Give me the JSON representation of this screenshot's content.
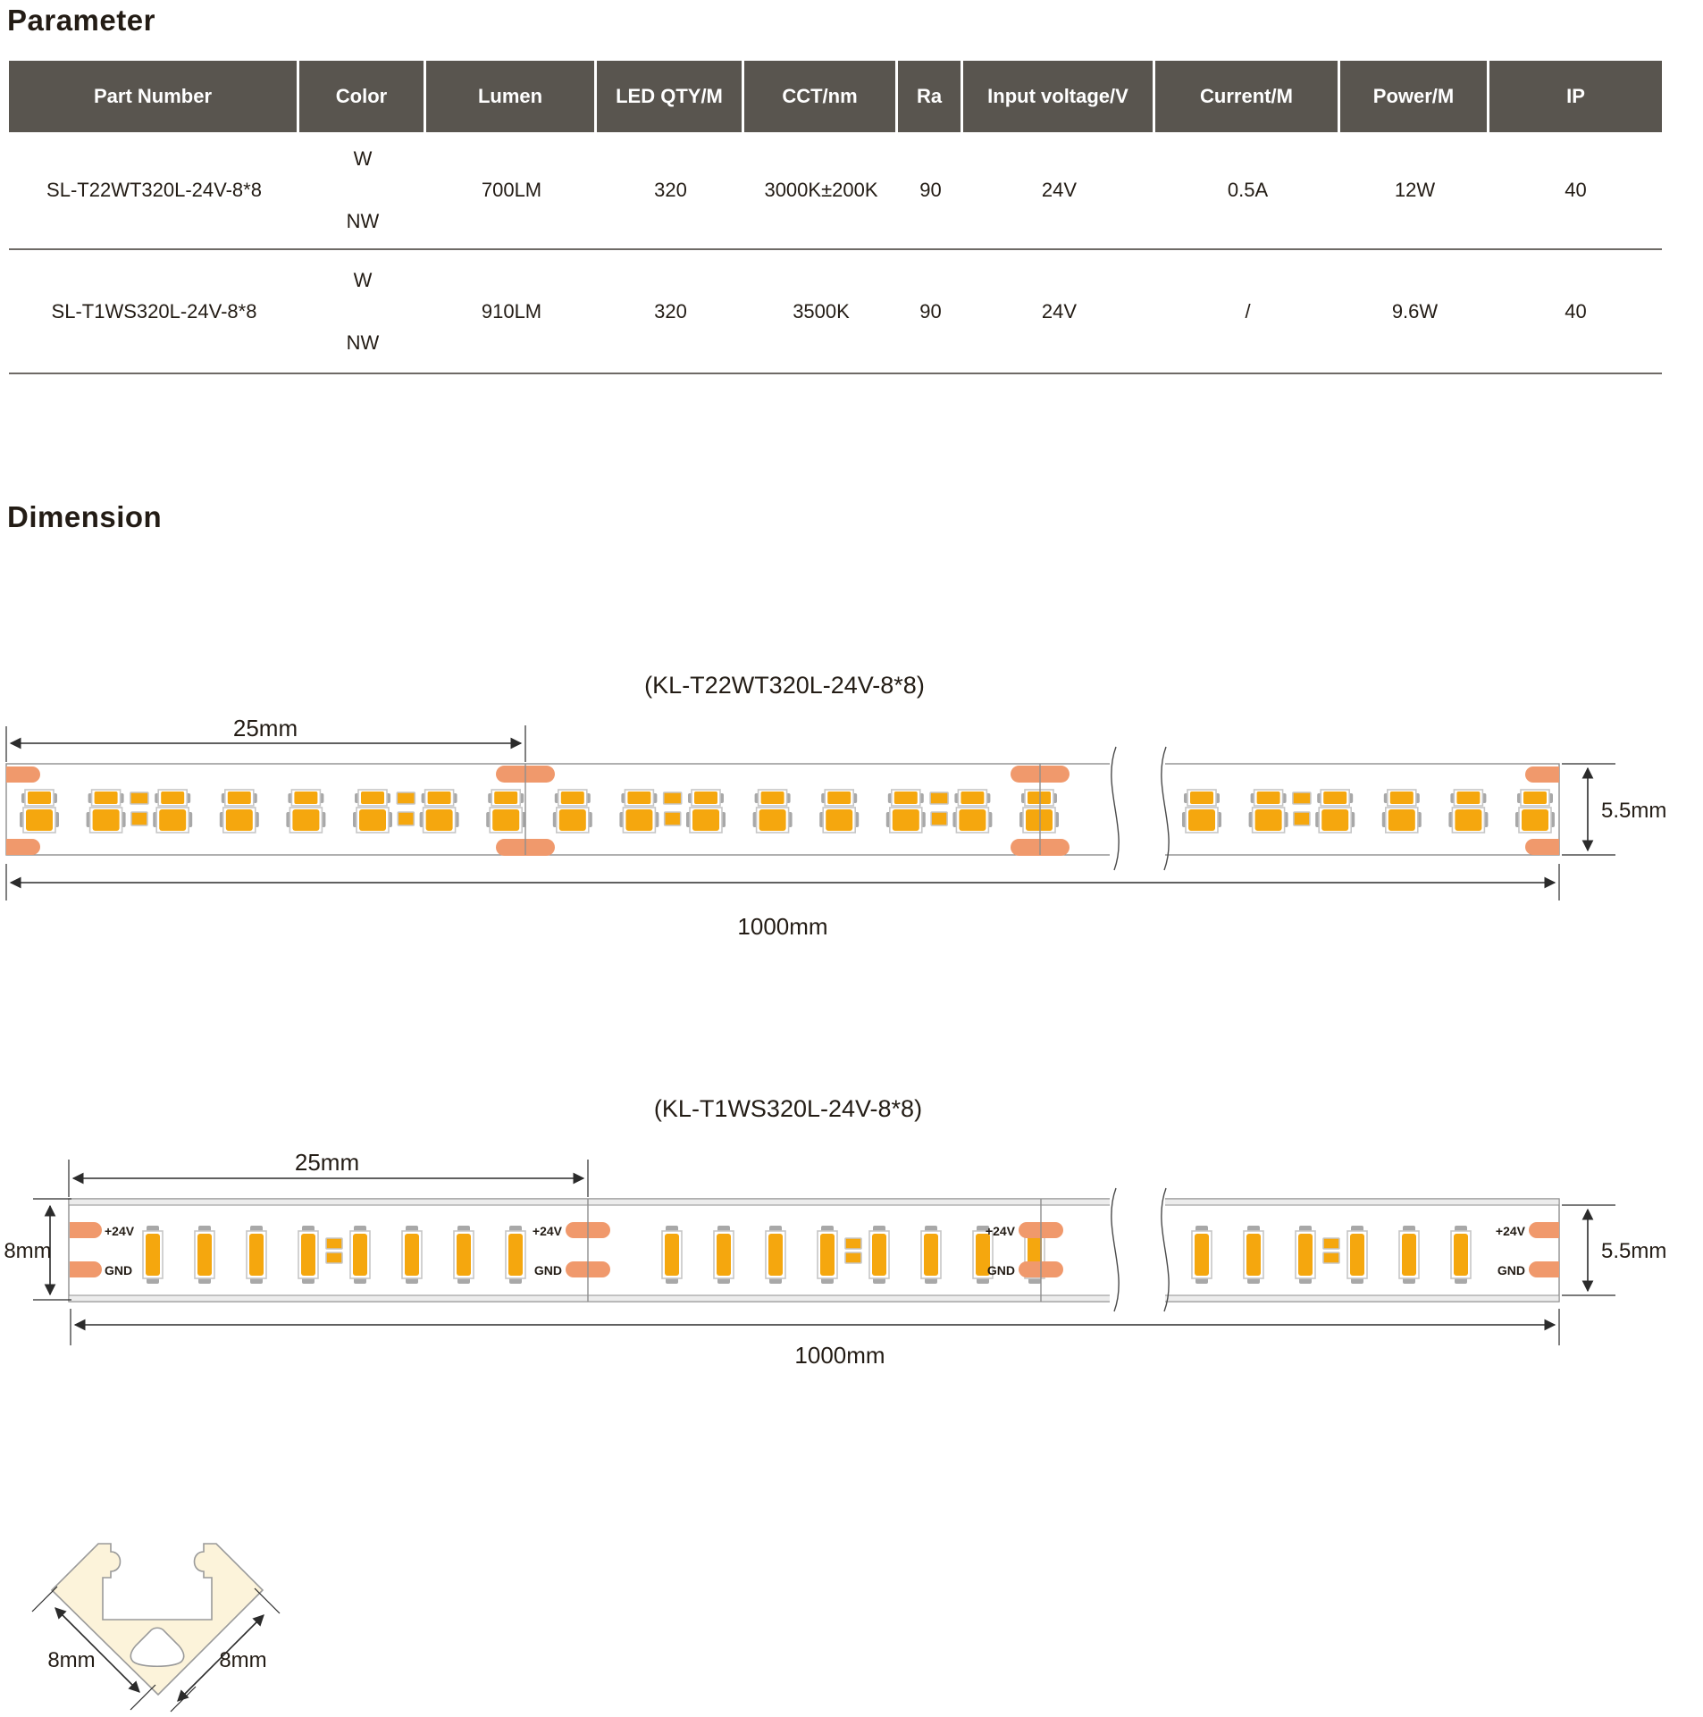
{
  "page": {
    "parameter_heading": "Parameter",
    "dimension_heading": "Dimension"
  },
  "table": {
    "columns": [
      "Part Number",
      "Color",
      "Lumen",
      "LED QTY/M",
      "CCT/nm",
      "Ra",
      "Input voltage/V",
      "Current/M",
      "Power/M",
      "IP"
    ],
    "rows": [
      {
        "part_number": "SL-T22WT320L-24V-8*8",
        "color_top": "W",
        "color_bottom": "NW",
        "lumen": "700LM",
        "led_qty": "320",
        "cct": "3000K±200K",
        "ra": "90",
        "input_voltage": "24V",
        "current": "0.5A",
        "power": "12W",
        "ip": "40"
      },
      {
        "part_number": "SL-T1WS320L-24V-8*8",
        "color_top": "W",
        "color_bottom": "NW",
        "lumen": "910LM",
        "led_qty": "320",
        "cct": "3500K",
        "ra": "90",
        "input_voltage": "24V",
        "current": "/",
        "power": "9.6W",
        "ip": "40"
      }
    ]
  },
  "diagram1": {
    "title": "(KL-T22WT320L-24V-8*8)",
    "dim_pitch": "25mm",
    "dim_length": "1000mm",
    "dim_height": "5.5mm"
  },
  "diagram2": {
    "title": "(KL-T1WS320L-24V-8*8)",
    "dim_pitch": "25mm",
    "dim_length": "1000mm",
    "dim_width": "8mm",
    "dim_height": "5.5mm",
    "pad_positive": "+24V",
    "pad_ground": "GND"
  },
  "profile": {
    "dim_left": "8mm",
    "dim_right": "8mm"
  },
  "colors": {
    "header_background": "#59554f",
    "pad_salmon": "#f0996c",
    "led_amber": "#f5a70e",
    "electrode_gray": "#a8a8a8",
    "outline_gray": "#8f8f8f",
    "profile_cream": "#fcf3da"
  },
  "led_arrays": {
    "strip1": {
      "pitch": 74.6,
      "runs": [
        {
          "start": 44,
          "count": 16
        },
        {
          "start": 1345,
          "count": 6
        }
      ],
      "square_period": 4,
      "square_after": 1
    },
    "strip2": {
      "pitch": 58,
      "runs": [
        {
          "start": 171,
          "count": 8,
          "sq_after": 3
        },
        {
          "start": 752,
          "count": 8,
          "sq_after": 3
        },
        {
          "start": 1345,
          "count": 6,
          "sq_after": 2
        }
      ]
    }
  }
}
